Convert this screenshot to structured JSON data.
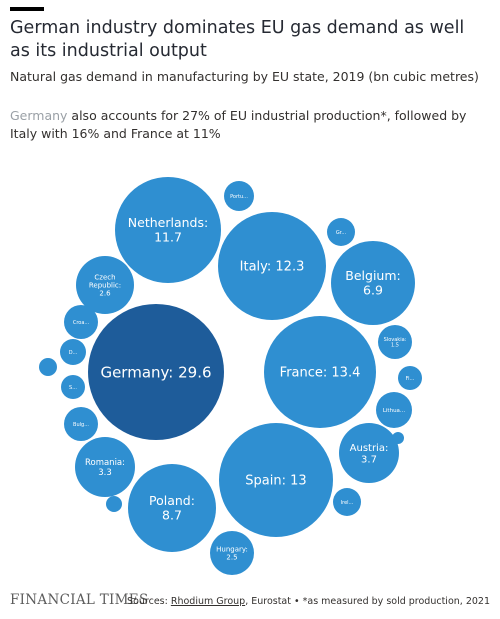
{
  "header": {
    "title": "German industry dominates EU gas demand as well as its industrial output",
    "subtitle": "Natural gas demand in manufacturing by EU state, 2019 (bn cubic metres)",
    "note_highlight": "Germany",
    "note_rest": " also accounts for 27% of EU industrial production*, followed by Italy with 16% and France at 11%"
  },
  "colors": {
    "germany": "#1e5c9a",
    "other": "#2f8fd1",
    "label": "#ffffff"
  },
  "chart_data": {
    "type": "bubble",
    "title": "German industry dominates EU gas demand as well as its industrial output",
    "unit": "bn cubic metres",
    "bubbles": [
      {
        "label": "Germany: 29.6",
        "name": "Germany",
        "value": 29.6,
        "highlight": true
      },
      {
        "label": "France: 13.4",
        "name": "France",
        "value": 13.4
      },
      {
        "label": "Spain: 13",
        "name": "Spain",
        "value": 13
      },
      {
        "label": "Italy: 12.3",
        "name": "Italy",
        "value": 12.3
      },
      {
        "label": "Netherlands:\n11.7",
        "name": "Netherlands",
        "value": 11.7
      },
      {
        "label": "Poland:\n8.7",
        "name": "Poland",
        "value": 8.7
      },
      {
        "label": "Belgium:\n6.9",
        "name": "Belgium",
        "value": 6.9
      },
      {
        "label": "Austria:\n3.7",
        "name": "Austria",
        "value": 3.7
      },
      {
        "label": "Romania:\n3.3",
        "name": "Romania",
        "value": 3.3
      },
      {
        "label": "Czech\nRepublic:\n2.6",
        "name": "Czech Republic",
        "value": 2.6
      },
      {
        "label": "Hungary:\n2.5",
        "name": "Hungary",
        "value": 2.5
      },
      {
        "label": "Slovakia:\n1.5",
        "name": "Slovakia",
        "value": 1.5
      },
      {
        "label": "Lithua...",
        "name": "Lithua...",
        "value": null
      },
      {
        "label": "Bulg...",
        "name": "Bulg...",
        "value": null
      },
      {
        "label": "Croa...",
        "name": "Croa...",
        "value": null
      },
      {
        "label": "Portu...",
        "name": "Portu...",
        "value": null
      },
      {
        "label": "Gr...",
        "name": "Gr...",
        "value": null
      },
      {
        "label": "Fi...",
        "name": "Fi...",
        "value": null
      },
      {
        "label": "Irel...",
        "name": "Irel...",
        "value": null
      },
      {
        "label": "D...",
        "name": "D...",
        "value": null
      },
      {
        "label": "S...",
        "name": "S...",
        "value": null
      },
      {
        "label": "",
        "name": "unlabelled",
        "value": null
      },
      {
        "label": "",
        "name": "unlabelled",
        "value": null
      },
      {
        "label": "",
        "name": "unlabelled",
        "value": null
      }
    ]
  },
  "footer": {
    "logo": "FINANCIAL TIMES",
    "sources_prefix": "Sources: ",
    "sources_link": "Rhodium Group",
    "sources_rest": ", Eurostat • *as measured by sold production, 2021"
  }
}
